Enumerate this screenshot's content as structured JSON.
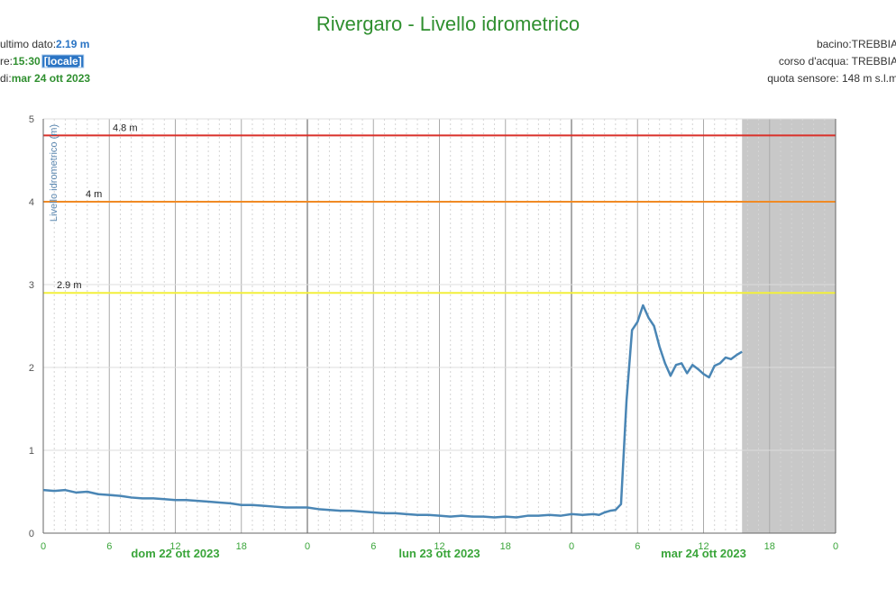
{
  "chart_data": {
    "type": "line",
    "title": "Rivergaro - Livello idrometrico",
    "y_label": "Livello idrometrico (m)",
    "info_left": [
      [
        {
          "text": "ultimo dato:",
          "style": "plain"
        },
        {
          "text": "2.19 m",
          "style": "blue"
        }
      ],
      [
        {
          "text": "re:",
          "style": "plain"
        },
        {
          "text": "15:30",
          "style": "green"
        },
        {
          "text": "[locale]",
          "style": "badge"
        }
      ],
      [
        {
          "text": "di:",
          "style": "plain"
        },
        {
          "text": "mar 24 ott 2023",
          "style": "green"
        }
      ]
    ],
    "info_right": [
      "bacino:TREBBIA",
      "corso d'acqua: TREBBIA",
      "quota sensore: 148 m s.l.m"
    ],
    "day_labels": [
      {
        "value": 12,
        "label": "dom 22 ott 2023"
      },
      {
        "value": 36,
        "label": "lun 23 ott 2023"
      },
      {
        "value": 60,
        "label": "mar 24 ott 2023"
      }
    ],
    "xlim": [
      0,
      72
    ],
    "xticks": [
      0,
      6,
      12,
      18,
      {
        "value": 24,
        "label": "0"
      },
      {
        "value": 30,
        "label": "6"
      },
      {
        "value": 36,
        "label": "12"
      },
      {
        "value": 42,
        "label": "18"
      },
      {
        "value": 48,
        "label": "0"
      },
      {
        "value": 54,
        "label": "6"
      },
      {
        "value": 60,
        "label": "12"
      },
      {
        "value": 66,
        "label": "18"
      },
      {
        "value": 72,
        "label": "0"
      }
    ],
    "ylim": [
      0,
      5
    ],
    "yticks": [
      0,
      1,
      2,
      3,
      4,
      5
    ],
    "grid": true,
    "thresholds": [
      {
        "value": 4.8,
        "label": "4.8 m",
        "color": "#d9302a"
      },
      {
        "value": 4,
        "label": "4 m",
        "color": "#f08a24"
      },
      {
        "value": 2.9,
        "label": "2.9 m",
        "color": "#f2ef3a"
      }
    ],
    "series": [
      {
        "name": "Livello idrometrico",
        "color": "#4a86b5",
        "x": [
          0,
          1,
          2,
          3,
          4,
          5,
          6,
          7,
          8,
          9,
          10,
          11,
          12,
          13,
          14,
          15,
          16,
          17,
          18,
          19,
          20,
          21,
          22,
          23,
          24,
          25,
          26,
          27,
          28,
          29,
          30,
          31,
          32,
          33,
          34,
          35,
          36,
          37,
          38,
          39,
          40,
          41,
          42,
          43,
          44,
          45,
          46,
          47,
          48,
          49,
          50,
          50.5,
          51,
          51.5,
          52,
          52.5,
          53,
          53.5,
          54,
          54.5,
          55,
          55.5,
          56,
          56.5,
          57,
          57.5,
          58,
          58.5,
          59,
          59.5,
          60,
          60.5,
          61,
          61.5,
          62,
          62.5,
          63,
          63.5
        ],
        "values": [
          0.52,
          0.51,
          0.52,
          0.49,
          0.5,
          0.47,
          0.46,
          0.45,
          0.43,
          0.42,
          0.42,
          0.41,
          0.4,
          0.4,
          0.39,
          0.38,
          0.37,
          0.36,
          0.34,
          0.34,
          0.33,
          0.32,
          0.31,
          0.31,
          0.31,
          0.29,
          0.28,
          0.27,
          0.27,
          0.26,
          0.25,
          0.24,
          0.24,
          0.23,
          0.22,
          0.22,
          0.21,
          0.2,
          0.21,
          0.2,
          0.2,
          0.19,
          0.2,
          0.19,
          0.21,
          0.21,
          0.22,
          0.21,
          0.23,
          0.22,
          0.23,
          0.22,
          0.25,
          0.27,
          0.28,
          0.35,
          1.6,
          2.45,
          2.55,
          2.75,
          2.6,
          2.5,
          2.25,
          2.05,
          1.9,
          2.03,
          2.05,
          1.93,
          2.03,
          1.98,
          1.92,
          1.88,
          2.02,
          2.05,
          2.12,
          2.1,
          2.15,
          2.19
        ]
      }
    ]
  }
}
